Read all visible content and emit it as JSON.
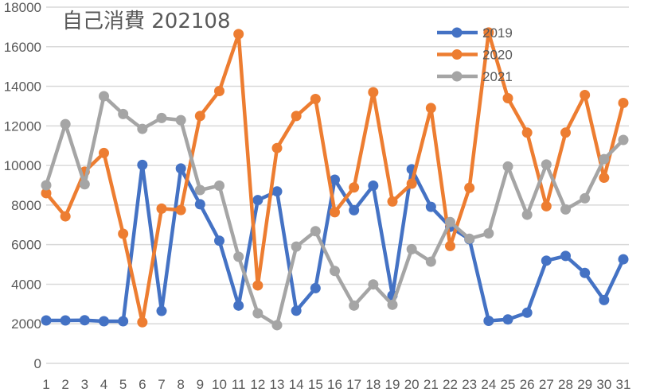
{
  "chart_data": {
    "type": "line",
    "title": "自己消費 202108",
    "xlabel": "",
    "ylabel": "",
    "ylim": [
      0,
      18000
    ],
    "yticks": [
      0,
      2000,
      4000,
      6000,
      8000,
      10000,
      12000,
      14000,
      16000,
      18000
    ],
    "grid": true,
    "legend_position": "top-right (inside plot)",
    "categories": [
      1,
      2,
      3,
      4,
      5,
      6,
      7,
      8,
      9,
      10,
      11,
      12,
      13,
      14,
      15,
      16,
      17,
      18,
      19,
      20,
      21,
      22,
      23,
      24,
      25,
      26,
      27,
      28,
      29,
      30,
      31
    ],
    "series": [
      {
        "name": "2019",
        "color": "#4472c4",
        "values": [
          2170,
          2170,
          2180,
          2130,
          2130,
          10030,
          2650,
          9850,
          8040,
          6200,
          2920,
          8250,
          8690,
          2660,
          3800,
          9280,
          7740,
          8980,
          3430,
          9810,
          7910,
          6900,
          6270,
          2150,
          2220,
          2560,
          5190,
          5430,
          4570,
          3200,
          5260
        ]
      },
      {
        "name": "2020",
        "color": "#ed7d31",
        "values": [
          8600,
          7430,
          9690,
          10630,
          6550,
          2080,
          7820,
          7750,
          12500,
          13760,
          16640,
          3940,
          10880,
          12500,
          13360,
          7640,
          8890,
          13700,
          8180,
          9080,
          12900,
          5930,
          8870,
          16720,
          13400,
          11660,
          7940,
          11660,
          13560,
          9380,
          13160
        ]
      },
      {
        "name": "2021",
        "color": "#a5a5a5",
        "values": [
          9000,
          12090,
          9050,
          13500,
          12600,
          11850,
          12400,
          12290,
          8760,
          8980,
          5390,
          2530,
          1930,
          5900,
          6680,
          4670,
          2920,
          3990,
          2960,
          5770,
          5140,
          7140,
          6300,
          6570,
          9950,
          7510,
          10050,
          7780,
          8340,
          10320,
          11290
        ]
      }
    ]
  }
}
